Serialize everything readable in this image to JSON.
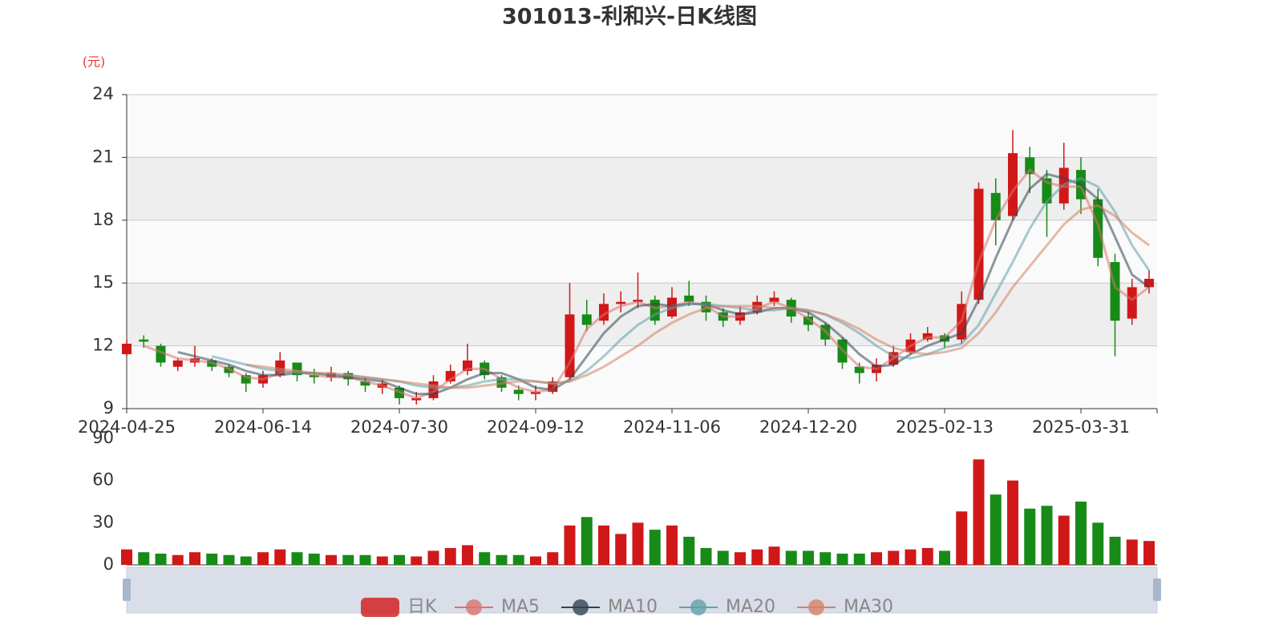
{
  "chart_data": {
    "type": "candlestick",
    "title": "301013-利和兴-日K线图",
    "y_label": "(元)",
    "up_color": "#d01818",
    "down_color": "#178a17",
    "categories": [
      "2024-04-25",
      null,
      null,
      null,
      null,
      null,
      null,
      null,
      "2024-06-14",
      null,
      null,
      null,
      null,
      null,
      null,
      null,
      "2024-07-30",
      null,
      null,
      null,
      null,
      null,
      null,
      null,
      "2024-09-12",
      null,
      null,
      null,
      null,
      null,
      null,
      null,
      "2024-11-06",
      null,
      null,
      null,
      null,
      null,
      null,
      null,
      "2024-12-20",
      null,
      null,
      null,
      null,
      null,
      null,
      null,
      "2025-02-13",
      null,
      null,
      null,
      null,
      null,
      null,
      null,
      "2025-03-31",
      null,
      null,
      null,
      null
    ],
    "ylim": [
      9,
      24
    ],
    "yticks": [
      9,
      12,
      15,
      18,
      21,
      24
    ],
    "series": [
      {
        "name": "日K",
        "values": [
          [
            11.6,
            12.1,
            11.5,
            12.3
          ],
          [
            12.3,
            12.2,
            11.9,
            12.5
          ],
          [
            12.0,
            11.2,
            11.0,
            12.1
          ],
          [
            11.0,
            11.3,
            10.8,
            11.4
          ],
          [
            11.2,
            11.4,
            11.0,
            12.0
          ],
          [
            11.3,
            11.0,
            10.8,
            11.4
          ],
          [
            11.0,
            10.7,
            10.5,
            11.1
          ],
          [
            10.6,
            10.2,
            9.8,
            10.7
          ],
          [
            10.2,
            10.6,
            10.0,
            10.8
          ],
          [
            10.6,
            11.3,
            10.5,
            11.7
          ],
          [
            11.2,
            10.6,
            10.3,
            11.2
          ],
          [
            10.6,
            10.5,
            10.2,
            10.9
          ],
          [
            10.5,
            10.7,
            10.3,
            11.0
          ],
          [
            10.7,
            10.4,
            10.1,
            10.8
          ],
          [
            10.3,
            10.1,
            9.8,
            10.5
          ],
          [
            10.0,
            10.2,
            9.7,
            10.4
          ],
          [
            10.0,
            9.5,
            9.2,
            10.1
          ],
          [
            9.4,
            9.5,
            9.2,
            9.8
          ],
          [
            9.5,
            10.3,
            9.4,
            10.6
          ],
          [
            10.3,
            10.8,
            10.2,
            11.1
          ],
          [
            10.8,
            11.3,
            10.6,
            12.1
          ],
          [
            11.2,
            10.6,
            10.4,
            11.3
          ],
          [
            10.5,
            10.0,
            9.8,
            10.6
          ],
          [
            9.9,
            9.7,
            9.4,
            10.1
          ],
          [
            9.7,
            9.8,
            9.4,
            10.1
          ],
          [
            9.8,
            10.3,
            9.7,
            10.5
          ],
          [
            10.5,
            13.5,
            10.4,
            15.0
          ],
          [
            13.5,
            13.0,
            12.7,
            14.2
          ],
          [
            13.2,
            14.0,
            13.0,
            14.5
          ],
          [
            14.0,
            14.1,
            13.6,
            14.6
          ],
          [
            14.1,
            14.2,
            13.8,
            15.5
          ],
          [
            14.2,
            13.2,
            13.0,
            14.4
          ],
          [
            13.4,
            14.3,
            13.3,
            14.8
          ],
          [
            14.4,
            14.1,
            13.9,
            15.1
          ],
          [
            14.1,
            13.6,
            13.2,
            14.4
          ],
          [
            13.6,
            13.2,
            12.9,
            13.8
          ],
          [
            13.2,
            13.6,
            13.0,
            13.9
          ],
          [
            13.6,
            14.1,
            13.5,
            14.4
          ],
          [
            14.1,
            14.3,
            13.9,
            14.6
          ],
          [
            14.2,
            13.4,
            13.1,
            14.3
          ],
          [
            13.4,
            13.0,
            12.7,
            13.6
          ],
          [
            13.0,
            12.3,
            12.0,
            13.1
          ],
          [
            12.3,
            11.2,
            10.9,
            12.4
          ],
          [
            11.0,
            10.7,
            10.2,
            11.2
          ],
          [
            10.7,
            11.1,
            10.3,
            11.4
          ],
          [
            11.1,
            11.7,
            11.0,
            12.0
          ],
          [
            11.7,
            12.3,
            11.6,
            12.6
          ],
          [
            12.3,
            12.6,
            12.2,
            12.9
          ],
          [
            12.5,
            12.2,
            11.9,
            12.6
          ],
          [
            12.3,
            14.0,
            12.1,
            14.6
          ],
          [
            14.2,
            19.5,
            14.0,
            19.8
          ],
          [
            19.3,
            18.0,
            16.8,
            20.0
          ],
          [
            18.2,
            21.2,
            18.0,
            22.3
          ],
          [
            21.0,
            20.2,
            19.3,
            21.5
          ],
          [
            20.0,
            18.8,
            17.2,
            20.4
          ],
          [
            18.8,
            20.5,
            18.5,
            21.7
          ],
          [
            20.4,
            19.0,
            18.3,
            21.0
          ],
          [
            19.0,
            16.2,
            15.8,
            19.5
          ],
          [
            16.0,
            13.2,
            11.5,
            16.4
          ],
          [
            13.3,
            14.8,
            13.0,
            15.2
          ],
          [
            14.8,
            15.2,
            14.5,
            15.6
          ]
        ]
      },
      {
        "name": "MA5",
        "color": "#d9736f",
        "values": [
          null,
          12.0,
          11.7,
          11.4,
          11.3,
          11.2,
          10.9,
          10.5,
          10.4,
          10.7,
          10.8,
          10.6,
          10.5,
          10.5,
          10.3,
          10.1,
          9.8,
          9.5,
          9.8,
          10.4,
          10.9,
          10.9,
          10.4,
          10.0,
          9.8,
          9.9,
          11.2,
          12.8,
          13.5,
          13.9,
          14.1,
          13.8,
          13.9,
          14.1,
          13.9,
          13.4,
          13.4,
          13.8,
          14.1,
          13.8,
          13.3,
          12.7,
          11.8,
          11.0,
          10.9,
          11.4,
          12.0,
          12.4,
          12.4,
          13.2,
          16.0,
          18.0,
          19.4,
          20.4,
          19.8,
          19.6,
          19.6,
          17.8,
          14.8,
          14.2,
          14.8
        ]
      },
      {
        "name": "MA10",
        "color": "#2f4554",
        "values": [
          null,
          null,
          null,
          11.7,
          11.5,
          11.3,
          11.1,
          10.8,
          10.6,
          10.6,
          10.7,
          10.7,
          10.6,
          10.5,
          10.4,
          10.3,
          10.0,
          9.7,
          9.7,
          10.0,
          10.4,
          10.7,
          10.7,
          10.4,
          10.0,
          9.9,
          10.4,
          11.5,
          12.6,
          13.4,
          13.9,
          14.0,
          13.9,
          14.0,
          14.0,
          13.7,
          13.5,
          13.6,
          13.8,
          13.8,
          13.6,
          13.1,
          12.4,
          11.6,
          11.0,
          11.1,
          11.6,
          12.0,
          12.3,
          12.6,
          14.2,
          16.2,
          18.0,
          19.5,
          20.2,
          20.0,
          19.7,
          19.0,
          17.2,
          15.4,
          14.8
        ]
      },
      {
        "name": "MA20",
        "color": "#61a0a8",
        "values": [
          null,
          null,
          null,
          null,
          null,
          11.5,
          11.3,
          11.1,
          10.9,
          10.8,
          10.7,
          10.7,
          10.6,
          10.6,
          10.5,
          10.4,
          10.3,
          10.1,
          10.0,
          10.0,
          10.1,
          10.3,
          10.4,
          10.4,
          10.3,
          10.2,
          10.3,
          10.8,
          11.5,
          12.3,
          13.0,
          13.5,
          13.8,
          14.0,
          14.0,
          13.9,
          13.8,
          13.7,
          13.7,
          13.8,
          13.7,
          13.5,
          13.1,
          12.6,
          12.0,
          11.5,
          11.4,
          11.6,
          11.9,
          12.1,
          13.0,
          14.5,
          16.0,
          17.6,
          18.9,
          19.7,
          20.0,
          19.6,
          18.4,
          16.8,
          15.6
        ]
      },
      {
        "name": "MA30",
        "color": "#d48265",
        "values": [
          null,
          null,
          null,
          null,
          null,
          null,
          null,
          11.1,
          11.0,
          10.9,
          10.8,
          10.7,
          10.7,
          10.6,
          10.5,
          10.4,
          10.3,
          10.2,
          10.1,
          10.0,
          10.0,
          10.1,
          10.2,
          10.3,
          10.3,
          10.2,
          10.3,
          10.6,
          11.0,
          11.5,
          12.0,
          12.6,
          13.1,
          13.5,
          13.8,
          13.9,
          13.9,
          13.9,
          13.8,
          13.8,
          13.7,
          13.5,
          13.2,
          12.8,
          12.3,
          11.9,
          11.7,
          11.6,
          11.7,
          11.9,
          12.6,
          13.6,
          14.8,
          15.8,
          16.8,
          17.8,
          18.5,
          18.7,
          18.2,
          17.4,
          16.8
        ]
      }
    ],
    "volume": {
      "ylim": [
        0,
        90
      ],
      "yticks": [
        0,
        30,
        60,
        90
      ],
      "values": [
        11,
        9,
        8,
        7,
        9,
        8,
        7,
        6,
        9,
        11,
        9,
        8,
        7,
        7,
        7,
        6,
        7,
        6,
        10,
        12,
        14,
        9,
        7,
        7,
        6,
        9,
        28,
        34,
        28,
        22,
        30,
        25,
        28,
        20,
        12,
        10,
        9,
        11,
        13,
        10,
        10,
        9,
        8,
        8,
        9,
        10,
        11,
        12,
        10,
        38,
        75,
        50,
        60,
        40,
        42,
        35,
        45,
        30,
        20,
        18,
        17
      ]
    }
  }
}
